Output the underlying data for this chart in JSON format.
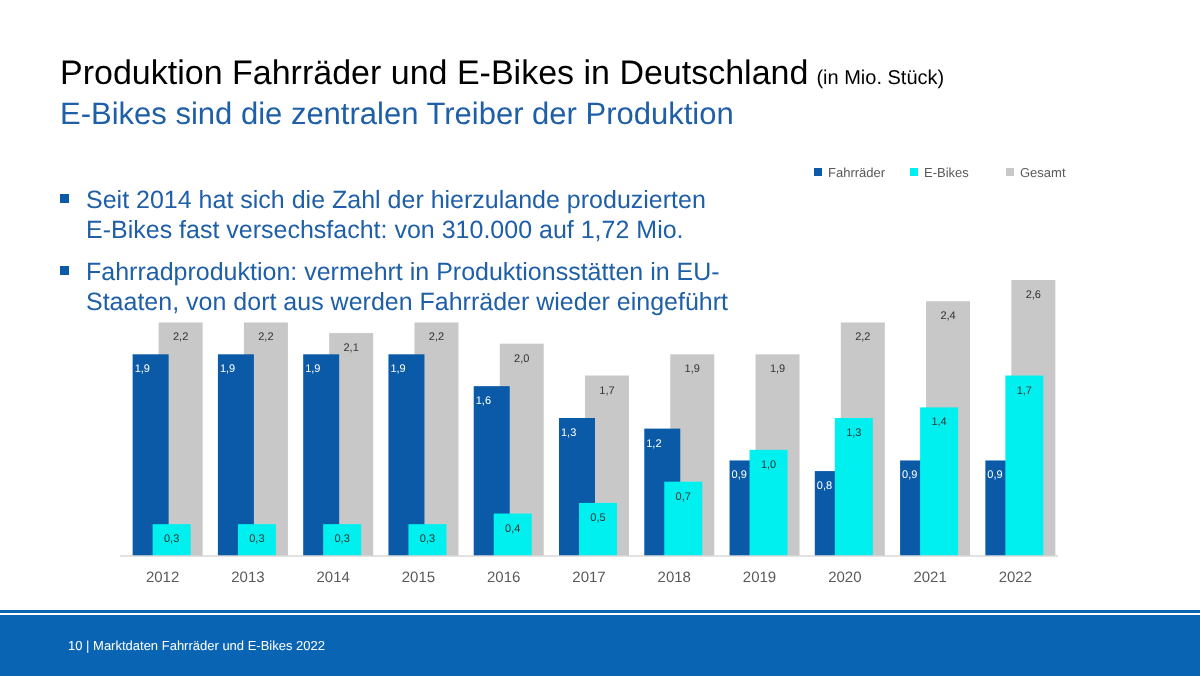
{
  "chart_data": {
    "type": "bar",
    "title": "Produktion Fahrräder und E-Bikes in Deutschland",
    "subtitle": "E-Bikes sind die zentralen Treiber der Produktion",
    "annotations": [
      "(in Mio. Stück)",
      "Seit 2014 hat sich die Zahl der hierzulande produzierten E-Bikes fast versechsfacht: von 310.000 auf 1,72 Mio.",
      "Fahrradproduktion: vermehrt in Produktionsstätten in EU-Staaten, von dort aus werden Fahrräder wieder eingeführt",
      "10 | Marktdaten Fahrräder und E-Bikes 2022"
    ],
    "categories": [
      "2012",
      "2013",
      "2014",
      "2015",
      "2016",
      "2017",
      "2018",
      "2019",
      "2020",
      "2021",
      "2022"
    ],
    "series": [
      {
        "name": "Fahrräder",
        "color": "#0a5aa8",
        "values": [
          1.9,
          1.9,
          1.9,
          1.9,
          1.6,
          1.3,
          1.2,
          0.9,
          0.8,
          0.9,
          0.9
        ],
        "value_labels": [
          "1,9",
          "1,9",
          "1,9",
          "1,9",
          "1,6",
          "1,3",
          "1,2",
          "0,9",
          "0,8",
          "0,9",
          "0,9"
        ]
      },
      {
        "name": "E-Bikes",
        "color": "#00f0f0",
        "values": [
          0.3,
          0.3,
          0.3,
          0.3,
          0.4,
          0.5,
          0.7,
          1.0,
          1.3,
          1.4,
          1.7
        ],
        "value_labels": [
          "0,3",
          "0,3",
          "0,3",
          "0,3",
          "0,4",
          "0,5",
          "0,7",
          "1,0",
          "1,3",
          "1,4",
          "1,7"
        ]
      },
      {
        "name": "Gesamt",
        "color": "#c8c8c8",
        "values": [
          2.2,
          2.2,
          2.1,
          2.2,
          2.0,
          1.7,
          1.9,
          1.9,
          2.2,
          2.4,
          2.6
        ],
        "value_labels": [
          "2,2",
          "2,2",
          "2,1",
          "2,2",
          "2,0",
          "1,7",
          "1,9",
          "1,9",
          "2,2",
          "2,4",
          "2,6"
        ]
      }
    ],
    "legend": "top right"
  }
}
